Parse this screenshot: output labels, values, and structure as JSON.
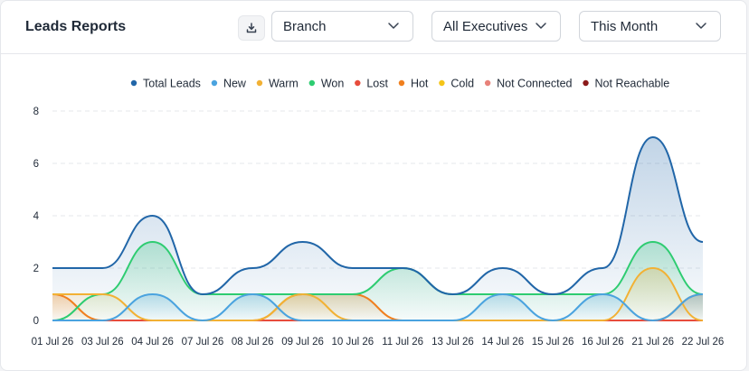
{
  "header": {
    "title": "Leads Reports",
    "branch": "Branch",
    "executives": "All Executives",
    "period": "This Month"
  },
  "chart_data": {
    "type": "area",
    "title": "",
    "xlabel": "",
    "ylabel": "",
    "ylim": [
      0,
      8
    ],
    "yticks": [
      0,
      2,
      4,
      6,
      8
    ],
    "grid": true,
    "legend_position": "top",
    "categories": [
      "01 Jul 26",
      "03 Jul 26",
      "04 Jul 26",
      "07 Jul 26",
      "08 Jul 26",
      "09 Jul 26",
      "10 Jul 26",
      "11 Jul 26",
      "13 Jul 26",
      "14 Jul 26",
      "15 Jul 26",
      "16 Jul 26",
      "21 Jul 26",
      "22 Jul 26"
    ],
    "series": [
      {
        "name": "Total Leads",
        "color": "#2166a8",
        "values": [
          2,
          2,
          4,
          1,
          2,
          3,
          2,
          2,
          1,
          2,
          1,
          2,
          7,
          3
        ]
      },
      {
        "name": "New",
        "color": "#4aa3df",
        "values": [
          0,
          0,
          1,
          0,
          1,
          0,
          0,
          0,
          0,
          1,
          0,
          1,
          0,
          1
        ]
      },
      {
        "name": "Warm",
        "color": "#f2b134",
        "values": [
          1,
          1,
          0,
          0,
          0,
          1,
          0,
          0,
          0,
          0,
          0,
          0,
          2,
          0
        ]
      },
      {
        "name": "Won",
        "color": "#2ecc71",
        "values": [
          0,
          1,
          3,
          1,
          1,
          1,
          1,
          2,
          1,
          1,
          1,
          1,
          3,
          1
        ]
      },
      {
        "name": "Lost",
        "color": "#e74c3c",
        "values": [
          0,
          0,
          0,
          0,
          0,
          0,
          0,
          0,
          0,
          0,
          0,
          0,
          0,
          0
        ]
      },
      {
        "name": "Hot",
        "color": "#f07f1e",
        "values": [
          1,
          0,
          0,
          0,
          0,
          1,
          1,
          0,
          0,
          0,
          0,
          0,
          0,
          1
        ]
      },
      {
        "name": "Cold",
        "color": "#f5c518",
        "values": [
          0,
          0,
          0,
          0,
          0,
          0,
          0,
          0,
          0,
          0,
          0,
          0,
          0,
          0
        ]
      },
      {
        "name": "Not Connected",
        "color": "#e8827a",
        "values": [
          0,
          0,
          0,
          0,
          0,
          0,
          0,
          0,
          0,
          0,
          0,
          0,
          0,
          0
        ]
      },
      {
        "name": "Not Reachable",
        "color": "#8b1a1a",
        "values": [
          0,
          0,
          0,
          0,
          0,
          0,
          0,
          0,
          0,
          0,
          0,
          0,
          0,
          0
        ]
      }
    ]
  }
}
